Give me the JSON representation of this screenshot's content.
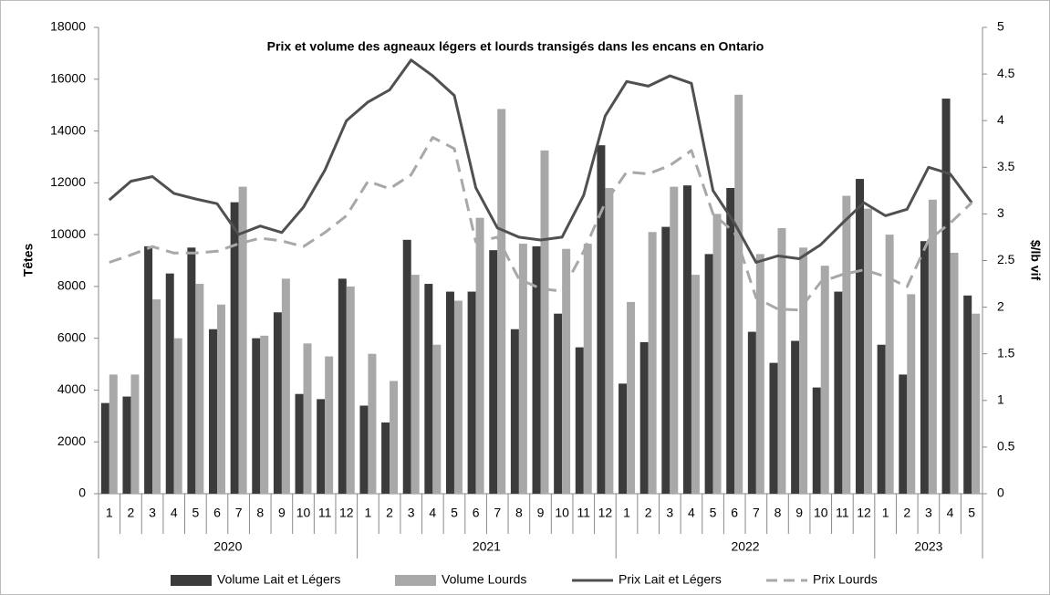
{
  "chart_data": {
    "type": "bar-line",
    "title": "Prix et volume des agneaux légers et lourds transigés dans les encans en Ontario",
    "y_label": "Têtes",
    "y2_label": "$/lb vif",
    "groups": [
      {
        "label": "2020",
        "categories": [
          "1",
          "2",
          "3",
          "4",
          "5",
          "6",
          "7",
          "8",
          "9",
          "10",
          "11",
          "12"
        ]
      },
      {
        "label": "2021",
        "categories": [
          "1",
          "2",
          "3",
          "4",
          "5",
          "6",
          "7",
          "8",
          "9",
          "10",
          "11",
          "12"
        ]
      },
      {
        "label": "2022",
        "categories": [
          "1",
          "2",
          "3",
          "4",
          "5",
          "6",
          "7",
          "8",
          "9",
          "10",
          "11",
          "12"
        ]
      },
      {
        "label": "2023",
        "categories": [
          "1",
          "2",
          "3",
          "4",
          "5"
        ]
      }
    ],
    "ylim": [
      0,
      18000
    ],
    "yticks": [
      0,
      2000,
      4000,
      6000,
      8000,
      10000,
      12000,
      14000,
      16000,
      18000
    ],
    "y2lim": [
      0,
      5
    ],
    "y2ticks": [
      0,
      0.5,
      1,
      1.5,
      2,
      2.5,
      3,
      3.5,
      4,
      4.5,
      5
    ],
    "grid": false,
    "series": [
      {
        "name": "Volume Lait et Légers",
        "type": "bar",
        "color": "#3b3b3b",
        "values": [
          3500,
          3750,
          9550,
          8500,
          9500,
          6350,
          11250,
          6000,
          7000,
          3850,
          3650,
          8300,
          3400,
          2750,
          9800,
          8100,
          7800,
          7800,
          9400,
          6350,
          9550,
          6950,
          5650,
          13450,
          4250,
          5850,
          10300,
          11900,
          9250,
          11800,
          6250,
          5050,
          5900,
          4100,
          7800,
          12150,
          5750,
          4600,
          9750,
          15250,
          7650
        ]
      },
      {
        "name": "Volume Lourds",
        "type": "bar",
        "color": "#a8a8a8",
        "values": [
          4600,
          4600,
          7500,
          6000,
          8100,
          7300,
          11850,
          6100,
          8300,
          5800,
          5300,
          8000,
          5400,
          4350,
          8450,
          5750,
          7450,
          10650,
          14850,
          9650,
          13250,
          9450,
          9650,
          11800,
          7400,
          10100,
          11850,
          8450,
          10800,
          15400,
          9250,
          10250,
          9500,
          8800,
          11500,
          11000,
          10000,
          7700,
          11350,
          9300,
          6950
        ]
      },
      {
        "name": "Prix Lait et Légers",
        "type": "line",
        "axis": "y2",
        "color": "#505050",
        "dash": false,
        "values": [
          3.15,
          3.35,
          3.4,
          3.22,
          3.16,
          3.11,
          2.78,
          2.87,
          2.8,
          3.07,
          3.47,
          4.0,
          4.2,
          4.33,
          4.65,
          4.48,
          4.27,
          3.28,
          2.85,
          2.75,
          2.72,
          2.75,
          3.2,
          4.05,
          4.42,
          4.37,
          4.48,
          4.4,
          3.25,
          2.9,
          2.48,
          2.55,
          2.52,
          2.67,
          2.9,
          3.12,
          2.98,
          3.05,
          3.5,
          3.43,
          3.12
        ]
      },
      {
        "name": "Prix Lourds",
        "type": "line",
        "axis": "y2",
        "color": "#a8a8a8",
        "dash": true,
        "values": [
          2.48,
          2.56,
          2.65,
          2.58,
          2.58,
          2.6,
          2.68,
          2.74,
          2.71,
          2.65,
          2.8,
          2.98,
          3.35,
          3.27,
          3.42,
          3.82,
          3.7,
          2.7,
          2.75,
          2.3,
          2.2,
          2.17,
          2.6,
          3.12,
          3.45,
          3.43,
          3.52,
          3.68,
          3.0,
          2.8,
          2.1,
          1.98,
          1.97,
          2.27,
          2.35,
          2.4,
          2.33,
          2.22,
          2.72,
          2.9,
          3.12
        ]
      }
    ]
  }
}
